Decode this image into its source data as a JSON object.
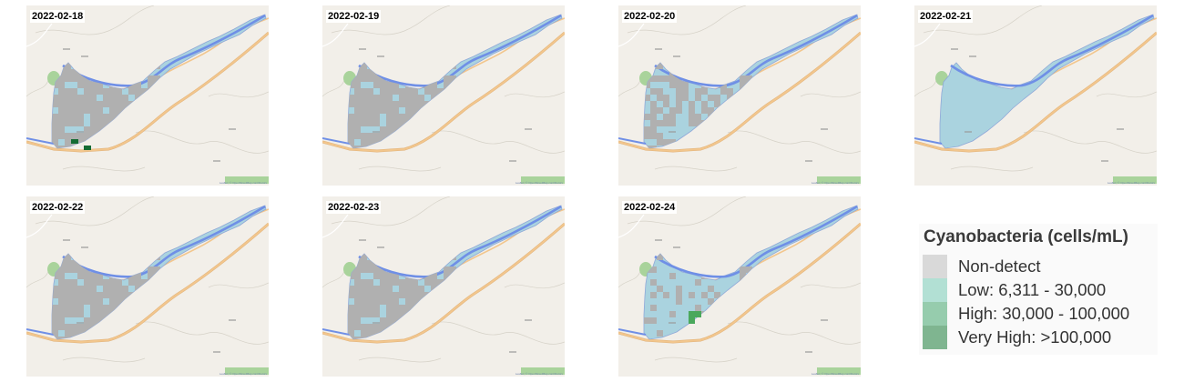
{
  "panels": [
    {
      "date": "2022-02-18",
      "attribution": "Leaflet | © OpenStreetMap contributors",
      "fill": "mostly_nondetect",
      "veryhigh": [
        [
          3,
          13
        ],
        [
          5,
          14
        ]
      ]
    },
    {
      "date": "2022-02-19",
      "attribution": "Leaflet | © OpenStreetMap contributors",
      "fill": "mostly_nondetect"
    },
    {
      "date": "2022-02-20",
      "attribution": "Leaflet | © OpenStreetMap contributors",
      "fill": "mixed"
    },
    {
      "date": "2022-02-21",
      "attribution": "Leaflet | © OpenStreetMap contributors",
      "fill": "low"
    },
    {
      "date": "2022-02-22",
      "attribution": "Leaflet | © OpenStreetMap contributors",
      "fill": "mostly_nondetect"
    },
    {
      "date": "2022-02-23",
      "attribution": "Leaflet | © OpenStreetMap contributors",
      "fill": "mostly_nondetect"
    },
    {
      "date": "2022-02-24",
      "attribution": "Leaflet | © OpenStreetMap contributors",
      "fill": "mostly_low",
      "high": [
        [
          7,
          10
        ],
        [
          8,
          10
        ],
        [
          7,
          11
        ]
      ]
    }
  ],
  "legend": {
    "title": "Cyanobacteria (cells/mL)",
    "items": [
      {
        "label": "Non-detect",
        "color": "#d9d9d9"
      },
      {
        "label": "Low: 6,311 - 30,000",
        "color": "#b2e0d4"
      },
      {
        "label": "High: 30,000 - 100,000",
        "color": "#96ccad"
      },
      {
        "label": "Very High: >100,000",
        "color": "#7fb590"
      }
    ]
  },
  "colors": {
    "land": "#f2efe9",
    "lake": "#aad3df",
    "river": "#6f8fe6",
    "road": "#f2c68d",
    "park": "#a9d39b",
    "nondetect": "#b0b0b0",
    "veryhigh": "#146b33",
    "high": "#4aa85c"
  }
}
